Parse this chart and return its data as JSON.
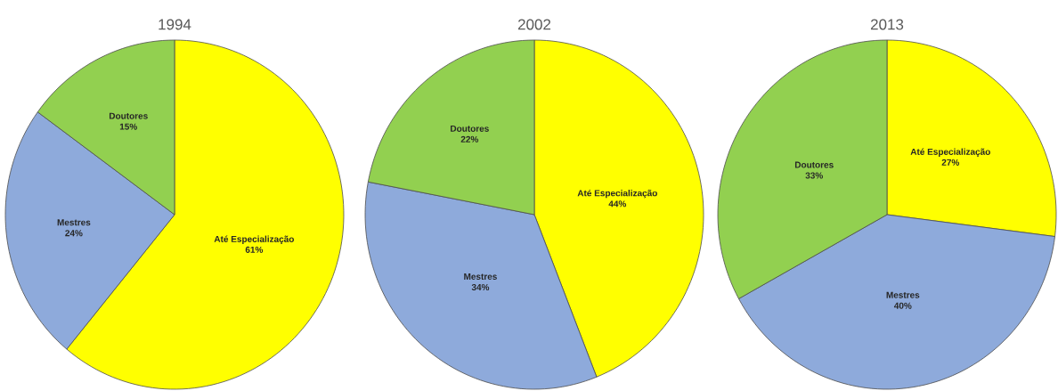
{
  "chart_data": [
    {
      "type": "pie",
      "title": "1994",
      "categories": [
        "Até Especialização",
        "Mestres",
        "Doutores"
      ],
      "values": [
        61,
        24,
        15
      ],
      "value_labels": [
        "61%",
        "24%",
        "15%"
      ],
      "colors": [
        "#ffff00",
        "#8eaadb",
        "#92d050"
      ]
    },
    {
      "type": "pie",
      "title": "2002",
      "categories": [
        "Até Especialização",
        "Mestres",
        "Doutores"
      ],
      "values": [
        44,
        34,
        22
      ],
      "value_labels": [
        "44%",
        "34%",
        "22%"
      ],
      "colors": [
        "#ffff00",
        "#8eaadb",
        "#92d050"
      ]
    },
    {
      "type": "pie",
      "title": "2013",
      "categories": [
        "Até Especialização",
        "Mestres",
        "Doutores"
      ],
      "values": [
        27,
        40,
        33
      ],
      "value_labels": [
        "27%",
        "40%",
        "33%"
      ],
      "colors": [
        "#ffff00",
        "#8eaadb",
        "#92d050"
      ]
    }
  ]
}
